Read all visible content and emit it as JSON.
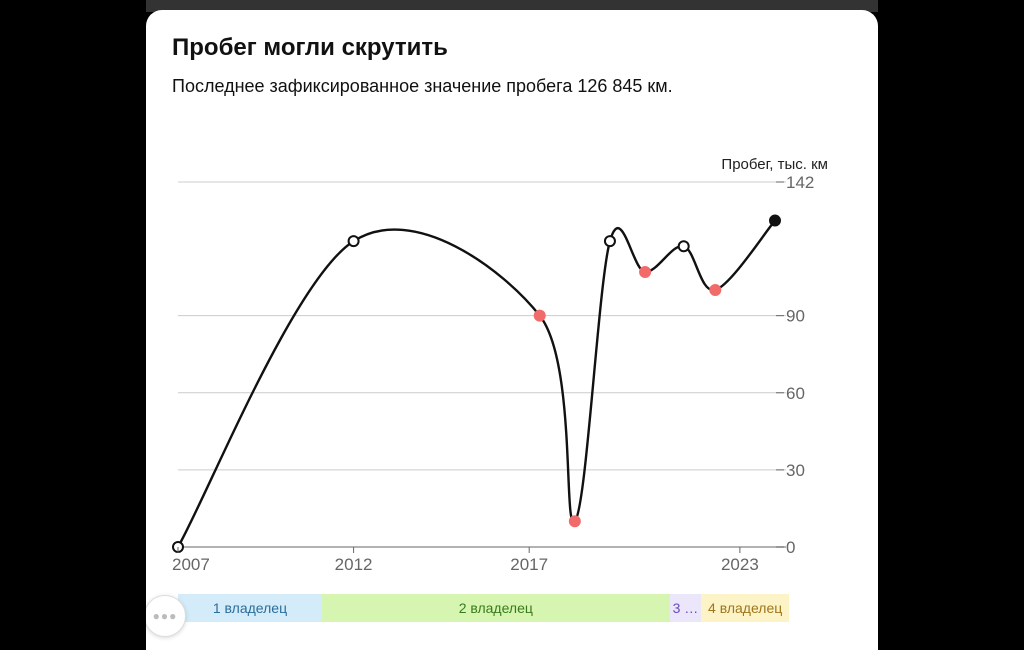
{
  "title": "Пробег могли скрутить",
  "subtitle": "Последнее зафиксированное значение пробега 126 845 км.",
  "colors": {
    "line": "#111111",
    "grid": "#cccccc",
    "axis": "#999999",
    "tick_text": "#666666",
    "point_ok": "#ffffff",
    "point_suspicious": "#f26b6b",
    "point_last": "#111111"
  },
  "chart_data": {
    "type": "line",
    "title": "",
    "xlabel": "",
    "ylabel": "Пробег, тыс. км",
    "x_ticks": [
      "2007",
      "2012",
      "2017",
      "2023"
    ],
    "y_ticks": [
      "142",
      "90",
      "60",
      "30",
      "0"
    ],
    "xlim": [
      2007.0,
      2024.0
    ],
    "ylim": [
      0,
      142
    ],
    "grid": true,
    "points": [
      {
        "x": 2007.0,
        "y": 0,
        "status": "ok"
      },
      {
        "x": 2012.0,
        "y": 119,
        "status": "ok"
      },
      {
        "x": 2017.3,
        "y": 90,
        "status": "suspicious"
      },
      {
        "x": 2018.3,
        "y": 10,
        "status": "suspicious"
      },
      {
        "x": 2019.3,
        "y": 119,
        "status": "ok"
      },
      {
        "x": 2020.3,
        "y": 107,
        "status": "suspicious"
      },
      {
        "x": 2021.4,
        "y": 117,
        "status": "ok"
      },
      {
        "x": 2022.3,
        "y": 100,
        "status": "suspicious"
      },
      {
        "x": 2024.0,
        "y": 127,
        "status": "last"
      }
    ]
  },
  "owners": [
    {
      "label": "1 владелец",
      "bg": "#d4ecfa",
      "color": "#2a6d9a",
      "from": 2007.0,
      "to": 2011.1
    },
    {
      "label": "2 владелец",
      "bg": "#d5f5b0",
      "color": "#3b7a1c",
      "from": 2011.1,
      "to": 2021.0
    },
    {
      "label": "3 …",
      "bg": "#ece6fb",
      "color": "#6b4bbf",
      "from": 2021.0,
      "to": 2021.9
    },
    {
      "label": "4 владелец",
      "bg": "#fcf3c7",
      "color": "#a0761a",
      "from": 2021.9,
      "to": 2024.4
    }
  ],
  "fab_icon": "more-dots-icon"
}
